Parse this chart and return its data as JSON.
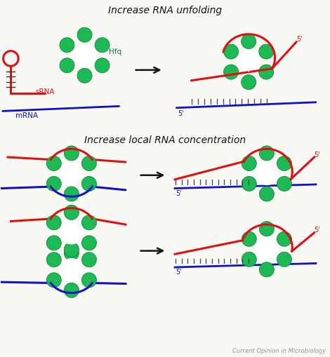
{
  "title1": "Increase RNA unfolding",
  "title2": "Increase local RNA concentration",
  "watermark": "Current Opinion in Microbiology",
  "hfq_label": "Hfq",
  "srna_label": "sRNA",
  "mrna_label": "mRNA",
  "five_prime": "5'",
  "bg_color": "#f8f8f4",
  "green_color": "#1db954",
  "green_dark": "#0a7a30",
  "red_color": "#dd1111",
  "blue_color": "#1111cc",
  "black_color": "#111111",
  "gray_color": "#999999",
  "title_fontsize": 10,
  "label_fontsize": 7.5,
  "watermark_fontsize": 6
}
